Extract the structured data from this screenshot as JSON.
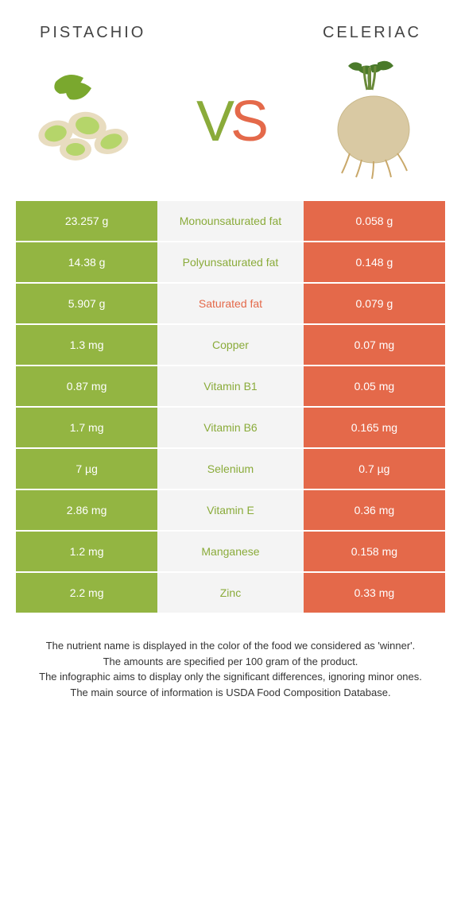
{
  "food1": {
    "name": "Pistachio"
  },
  "food2": {
    "name": "Celeriac"
  },
  "colors": {
    "food1_bg": "#93b542",
    "food2_bg": "#e4694a",
    "mid_bg": "#f4f4f4",
    "food1_text": "#8aab3a",
    "food2_text": "#e4694a",
    "cell_text": "#ffffff"
  },
  "rows": [
    {
      "left": "23.257 g",
      "label": "Monounsaturated fat",
      "right": "0.058 g",
      "winner": "food1"
    },
    {
      "left": "14.38 g",
      "label": "Polyunsaturated fat",
      "right": "0.148 g",
      "winner": "food1"
    },
    {
      "left": "5.907 g",
      "label": "Saturated fat",
      "right": "0.079 g",
      "winner": "food2"
    },
    {
      "left": "1.3 mg",
      "label": "Copper",
      "right": "0.07 mg",
      "winner": "food1"
    },
    {
      "left": "0.87 mg",
      "label": "Vitamin B1",
      "right": "0.05 mg",
      "winner": "food1"
    },
    {
      "left": "1.7 mg",
      "label": "Vitamin B6",
      "right": "0.165 mg",
      "winner": "food1"
    },
    {
      "left": "7 µg",
      "label": "Selenium",
      "right": "0.7 µg",
      "winner": "food1"
    },
    {
      "left": "2.86 mg",
      "label": "Vitamin E",
      "right": "0.36 mg",
      "winner": "food1"
    },
    {
      "left": "1.2 mg",
      "label": "Manganese",
      "right": "0.158 mg",
      "winner": "food1"
    },
    {
      "left": "2.2 mg",
      "label": "Zinc",
      "right": "0.33 mg",
      "winner": "food1"
    }
  ],
  "footer": {
    "line1": "The nutrient name is displayed in the color of the food we considered as 'winner'.",
    "line2": "The amounts are specified per 100 gram of the product.",
    "line3": "The infographic aims to display only the significant differences, ignoring minor ones.",
    "line4": "The main source of information is USDA Food Composition Database."
  }
}
